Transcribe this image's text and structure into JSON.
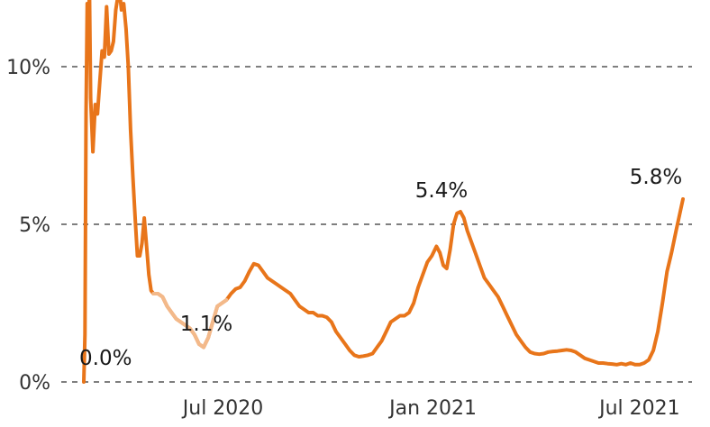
{
  "chart_data": {
    "type": "line",
    "title": "",
    "xlabel": "",
    "ylabel": "",
    "ylim": [
      0,
      12
    ],
    "y_ticks": [
      {
        "value": 0,
        "label": "0%"
      },
      {
        "value": 5,
        "label": "5%"
      },
      {
        "value": 10,
        "label": "10%"
      }
    ],
    "x_ticks": [
      {
        "value": "2020-07-01",
        "label": "Jul 2020"
      },
      {
        "value": "2021-01-01",
        "label": "Jan 2021"
      },
      {
        "value": "2021-07-01",
        "label": "Jul 2021"
      }
    ],
    "grid": "horizontal-dashed",
    "colors": {
      "line": "#e8751a",
      "line_light": "#f3b98a",
      "grid": "#333333"
    },
    "series": [
      {
        "values": [
          [
            "2020-03-01",
            0.0
          ],
          [
            "2020-03-02",
            1.5
          ],
          [
            "2020-03-03",
            8.5
          ],
          [
            "2020-03-04",
            12.0
          ],
          [
            "2020-03-05",
            11.0
          ],
          [
            "2020-03-06",
            12.4
          ],
          [
            "2020-03-07",
            9.0
          ],
          [
            "2020-03-09",
            7.3
          ],
          [
            "2020-03-11",
            8.8
          ],
          [
            "2020-03-13",
            8.5
          ],
          [
            "2020-03-15",
            9.5
          ],
          [
            "2020-03-17",
            10.5
          ],
          [
            "2020-03-19",
            10.3
          ],
          [
            "2020-03-21",
            11.9
          ],
          [
            "2020-03-23",
            10.4
          ],
          [
            "2020-03-25",
            10.5
          ],
          [
            "2020-03-27",
            10.8
          ],
          [
            "2020-03-29",
            11.8
          ],
          [
            "2020-04-01",
            12.5
          ],
          [
            "2020-04-03",
            11.8
          ],
          [
            "2020-04-05",
            12.0
          ],
          [
            "2020-04-07",
            11.2
          ],
          [
            "2020-04-09",
            10.0
          ],
          [
            "2020-04-11",
            8.0
          ],
          [
            "2020-04-13",
            6.5
          ],
          [
            "2020-04-15",
            5.2
          ],
          [
            "2020-04-17",
            4.0
          ],
          [
            "2020-04-19",
            4.0
          ],
          [
            "2020-04-21",
            4.4
          ],
          [
            "2020-04-23",
            5.2
          ],
          [
            "2020-04-25",
            4.3
          ],
          [
            "2020-04-27",
            3.4
          ],
          [
            "2020-04-29",
            2.9
          ],
          [
            "2020-05-01",
            2.8
          ],
          [
            "2020-05-05",
            2.8
          ],
          [
            "2020-05-09",
            2.7
          ],
          [
            "2020-05-13",
            2.4
          ],
          [
            "2020-05-17",
            2.2
          ],
          [
            "2020-05-21",
            2.0
          ],
          [
            "2020-05-25",
            1.9
          ],
          [
            "2020-05-29",
            1.8
          ],
          [
            "2020-06-02",
            1.7
          ],
          [
            "2020-06-06",
            1.5
          ],
          [
            "2020-06-10",
            1.2
          ],
          [
            "2020-06-14",
            1.1
          ],
          [
            "2020-06-18",
            1.4
          ],
          [
            "2020-06-22",
            1.9
          ],
          [
            "2020-06-26",
            2.4
          ],
          [
            "2020-06-30",
            2.5
          ],
          [
            "2020-07-04",
            2.6
          ],
          [
            "2020-07-08",
            2.8
          ],
          [
            "2020-07-12",
            2.95
          ],
          [
            "2020-07-16",
            3.0
          ],
          [
            "2020-07-20",
            3.2
          ],
          [
            "2020-07-24",
            3.5
          ],
          [
            "2020-07-28",
            3.75
          ],
          [
            "2020-08-01",
            3.7
          ],
          [
            "2020-08-05",
            3.5
          ],
          [
            "2020-08-09",
            3.3
          ],
          [
            "2020-08-13",
            3.2
          ],
          [
            "2020-08-17",
            3.1
          ],
          [
            "2020-08-21",
            3.0
          ],
          [
            "2020-08-25",
            2.9
          ],
          [
            "2020-08-29",
            2.8
          ],
          [
            "2020-09-02",
            2.6
          ],
          [
            "2020-09-06",
            2.4
          ],
          [
            "2020-09-10",
            2.3
          ],
          [
            "2020-09-14",
            2.2
          ],
          [
            "2020-09-18",
            2.2
          ],
          [
            "2020-09-22",
            2.1
          ],
          [
            "2020-09-26",
            2.1
          ],
          [
            "2020-09-30",
            2.05
          ],
          [
            "2020-10-04",
            1.9
          ],
          [
            "2020-10-08",
            1.6
          ],
          [
            "2020-10-12",
            1.4
          ],
          [
            "2020-10-16",
            1.2
          ],
          [
            "2020-10-20",
            1.0
          ],
          [
            "2020-10-24",
            0.85
          ],
          [
            "2020-10-28",
            0.8
          ],
          [
            "2020-11-01",
            0.82
          ],
          [
            "2020-11-05",
            0.85
          ],
          [
            "2020-11-09",
            0.9
          ],
          [
            "2020-11-13",
            1.1
          ],
          [
            "2020-11-17",
            1.3
          ],
          [
            "2020-11-21",
            1.6
          ],
          [
            "2020-11-25",
            1.9
          ],
          [
            "2020-11-29",
            2.0
          ],
          [
            "2020-12-03",
            2.1
          ],
          [
            "2020-12-07",
            2.1
          ],
          [
            "2020-12-11",
            2.2
          ],
          [
            "2020-12-15",
            2.5
          ],
          [
            "2020-12-19",
            3.0
          ],
          [
            "2020-12-23",
            3.4
          ],
          [
            "2020-12-27",
            3.8
          ],
          [
            "2020-12-31",
            4.0
          ],
          [
            "2021-01-04",
            4.3
          ],
          [
            "2021-01-07",
            4.1
          ],
          [
            "2021-01-10",
            3.7
          ],
          [
            "2021-01-13",
            3.6
          ],
          [
            "2021-01-16",
            4.2
          ],
          [
            "2021-01-19",
            5.0
          ],
          [
            "2021-01-22",
            5.35
          ],
          [
            "2021-01-25",
            5.4
          ],
          [
            "2021-01-28",
            5.2
          ],
          [
            "2021-01-31",
            4.8
          ],
          [
            "2021-02-03",
            4.5
          ],
          [
            "2021-02-07",
            4.1
          ],
          [
            "2021-02-11",
            3.7
          ],
          [
            "2021-02-15",
            3.3
          ],
          [
            "2021-02-19",
            3.1
          ],
          [
            "2021-02-23",
            2.9
          ],
          [
            "2021-02-27",
            2.7
          ],
          [
            "2021-03-03",
            2.4
          ],
          [
            "2021-03-07",
            2.1
          ],
          [
            "2021-03-11",
            1.8
          ],
          [
            "2021-03-15",
            1.5
          ],
          [
            "2021-03-19",
            1.3
          ],
          [
            "2021-03-23",
            1.1
          ],
          [
            "2021-03-27",
            0.95
          ],
          [
            "2021-03-31",
            0.9
          ],
          [
            "2021-04-04",
            0.88
          ],
          [
            "2021-04-08",
            0.9
          ],
          [
            "2021-04-12",
            0.95
          ],
          [
            "2021-04-16",
            0.97
          ],
          [
            "2021-04-20",
            0.98
          ],
          [
            "2021-04-24",
            1.0
          ],
          [
            "2021-04-28",
            1.02
          ],
          [
            "2021-05-02",
            1.0
          ],
          [
            "2021-05-06",
            0.95
          ],
          [
            "2021-05-10",
            0.85
          ],
          [
            "2021-05-14",
            0.75
          ],
          [
            "2021-05-18",
            0.7
          ],
          [
            "2021-05-22",
            0.65
          ],
          [
            "2021-05-26",
            0.6
          ],
          [
            "2021-05-30",
            0.6
          ],
          [
            "2021-06-03",
            0.58
          ],
          [
            "2021-06-07",
            0.57
          ],
          [
            "2021-06-11",
            0.55
          ],
          [
            "2021-06-15",
            0.58
          ],
          [
            "2021-06-19",
            0.55
          ],
          [
            "2021-06-23",
            0.6
          ],
          [
            "2021-06-27",
            0.55
          ],
          [
            "2021-07-01",
            0.55
          ],
          [
            "2021-07-05",
            0.6
          ],
          [
            "2021-07-09",
            0.7
          ],
          [
            "2021-07-13",
            1.0
          ],
          [
            "2021-07-17",
            1.6
          ],
          [
            "2021-07-21",
            2.5
          ],
          [
            "2021-07-25",
            3.5
          ],
          [
            "2021-07-29",
            4.1
          ],
          [
            "2021-08-02",
            4.8
          ],
          [
            "2021-08-05",
            5.3
          ],
          [
            "2021-08-08",
            5.8
          ]
        ]
      }
    ],
    "light_segments": [
      [
        "2020-05-01",
        "2020-07-05"
      ]
    ],
    "annotations": [
      {
        "x": "2020-03-01",
        "y": 0.0,
        "label": "0.0%"
      },
      {
        "x": "2020-06-14",
        "y": 1.1,
        "label": "1.1%"
      },
      {
        "x": "2021-01-25",
        "y": 5.4,
        "label": "5.4%"
      },
      {
        "x": "2021-08-08",
        "y": 5.8,
        "label": "5.8%"
      }
    ]
  }
}
